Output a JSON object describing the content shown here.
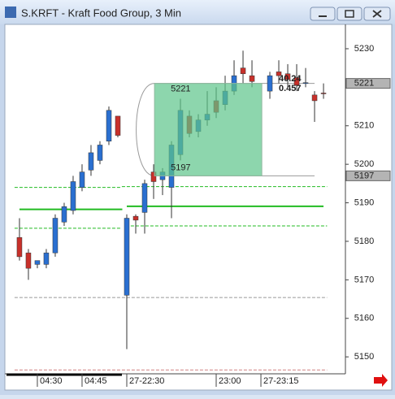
{
  "window_title": "S.KRFT - Kraft Food Group, 3 Min",
  "chart_data": {
    "type": "candlestick",
    "x": [
      0,
      1,
      2,
      3,
      4,
      5,
      6,
      7,
      8,
      9,
      10,
      11,
      12,
      13,
      14,
      15,
      16,
      17,
      18,
      19,
      20,
      21,
      22,
      23,
      24,
      25,
      26,
      28,
      29,
      30,
      31,
      32,
      33,
      34
    ],
    "open": [
      5181,
      5177,
      5174,
      5174,
      5177,
      5185,
      5188,
      5194,
      5198.5,
      5201,
      5206,
      5212.5,
      5166,
      5186.5,
      5187.5,
      5198,
      5196,
      5194,
      5202.5,
      5212.5,
      5208.5,
      5211.5,
      5216.5,
      5215.5,
      5219,
      5225,
      5223,
      5219,
      5224,
      5223.5,
      5222.5,
      5221,
      5218,
      5218.5
    ],
    "high": [
      5186,
      5178,
      5175,
      5178,
      5187,
      5190,
      5197,
      5200,
      5205,
      5206,
      5215,
      5212.5,
      5187,
      5187,
      5196,
      5200,
      5199,
      5206,
      5217,
      5214,
      5213,
      5219,
      5220,
      5223,
      5227,
      5229.5,
      5227,
      5224,
      5227,
      5226,
      5226,
      5225,
      5219,
      5221
    ],
    "low": [
      5175,
      5170,
      5173,
      5173,
      5176,
      5184,
      5187,
      5193,
      5197,
      5200,
      5205,
      5207,
      5152,
      5182,
      5182,
      5191,
      5192,
      5186,
      5201,
      5207,
      5207,
      5210,
      5212,
      5214,
      5218,
      5221,
      5220,
      5217,
      5221,
      5220,
      5219,
      5220,
      5211,
      5217
    ],
    "close": [
      5176,
      5173,
      5175,
      5177,
      5186,
      5189,
      5195.5,
      5198,
      5203,
      5205,
      5214,
      5207.5,
      5186,
      5185.5,
      5195,
      5195.5,
      5198,
      5205,
      5214,
      5208,
      5211.5,
      5213,
      5213.5,
      5219,
      5223,
      5223.5,
      5221.5,
      5223,
      5223,
      5222,
      5220.5,
      5221.2,
      5216.5,
      5218.3
    ],
    "up_color": "#2a6fd0",
    "down_color": "#c8302a",
    "xlim": [
      -1.45,
      36.45
    ],
    "ylim": [
      5145.6,
      5235.9
    ],
    "yticks": [
      5150,
      5160,
      5170,
      5180,
      5190,
      5200,
      5210,
      5230
    ],
    "xticks": [
      {
        "value": 2,
        "label": "04:30"
      },
      {
        "value": 7,
        "label": "04:45"
      },
      {
        "value": 12,
        "label": "27-22:30"
      },
      {
        "value": 22,
        "label": "23:00"
      },
      {
        "value": 27,
        "label": "27-23:15"
      }
    ],
    "price_labels": [
      5221,
      5197
    ],
    "box": {
      "top": 5221,
      "bottom": 5197,
      "x0": 15.1,
      "x1": 27.1,
      "color": "#5cc48a"
    },
    "annotations": [
      "40.24",
      "0.457"
    ],
    "levels": [
      {
        "value": 5194,
        "x": [
          -0.55,
          11.45
        ],
        "color": "#22bb22",
        "dashed": true
      },
      {
        "value": 5188.3,
        "x": [
          0,
          11.5
        ],
        "color": "#22bb22",
        "dashed": false
      },
      {
        "value": 5189.1,
        "x": [
          12,
          34
        ],
        "color": "#22bb22",
        "dashed": false
      },
      {
        "value": 5183.4,
        "x": [
          -0.55,
          11.45
        ],
        "color": "#22bb22",
        "dashed": true
      },
      {
        "value": 5194.2,
        "x": [
          11.45,
          34.4
        ],
        "color": "#22bb22",
        "dashed": true
      },
      {
        "value": 5184,
        "x": [
          11.9,
          34.4
        ],
        "color": "#22bb22",
        "dashed": true
      },
      {
        "value": 5165.4,
        "x": [
          -0.55,
          34.4
        ],
        "color": "#999999",
        "dashed": true
      },
      {
        "value": 5146.6,
        "x": [
          -0.55,
          34.4
        ],
        "color": "#d08080",
        "dashed": true
      }
    ]
  }
}
